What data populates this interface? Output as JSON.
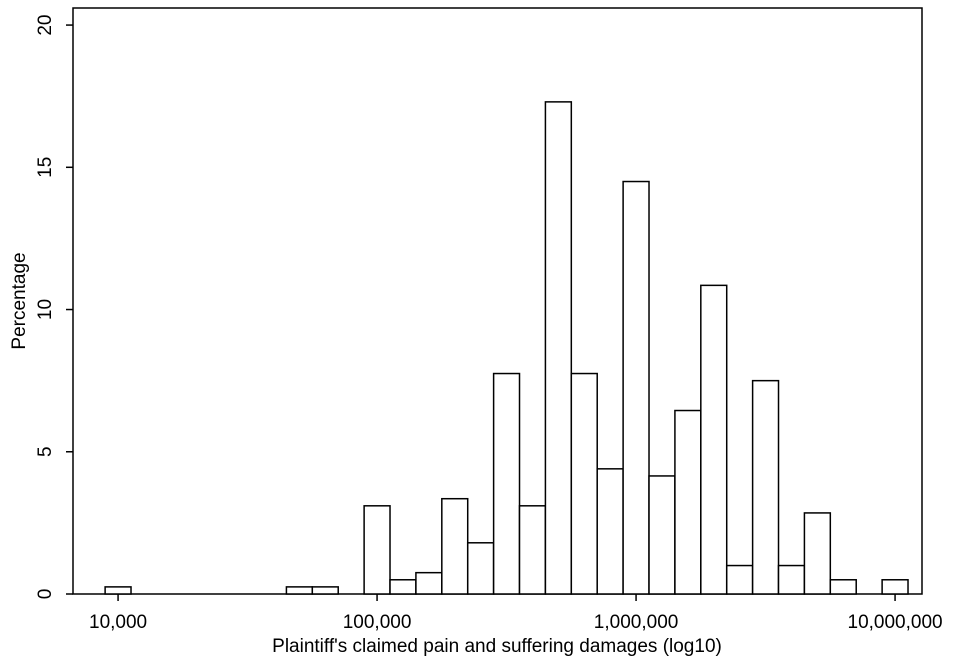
{
  "chart_data": {
    "type": "histogram",
    "x_label": "Plaintiff's claimed pain and suffering damages (log10)",
    "y_label": "Percentage",
    "bins": [
      3.95,
      4.05,
      4.15,
      4.25,
      4.35,
      4.45,
      4.55,
      4.65,
      4.75,
      4.85,
      4.95,
      5.05,
      5.15,
      5.25,
      5.35,
      5.45,
      5.55,
      5.65,
      5.75,
      5.85,
      5.95,
      6.05,
      6.15,
      6.25,
      6.35,
      6.45,
      6.55,
      6.65,
      6.75,
      6.85,
      6.95,
      7.05
    ],
    "values": [
      0.25,
      0,
      0,
      0,
      0,
      0,
      0,
      0.25,
      0.25,
      0,
      3.1,
      0.5,
      0.75,
      3.35,
      1.8,
      7.75,
      3.1,
      17.3,
      7.75,
      4.4,
      14.5,
      4.15,
      6.45,
      10.85,
      1.0,
      7.5,
      1.0,
      2.85,
      0.5,
      0,
      0.5
    ],
    "color": "#ffffff",
    "edge_color": "#000000",
    "xlim": [
      3.826,
      7.104
    ],
    "ylim": [
      0,
      20.6
    ],
    "xticks": [
      {
        "value": 4,
        "label": "10,000"
      },
      {
        "value": 5,
        "label": "100,000"
      },
      {
        "value": 6,
        "label": "1,000,000"
      },
      {
        "value": 7,
        "label": "10,000,000"
      }
    ],
    "yticks": [
      0,
      5,
      10,
      15,
      20
    ],
    "grid": false
  }
}
